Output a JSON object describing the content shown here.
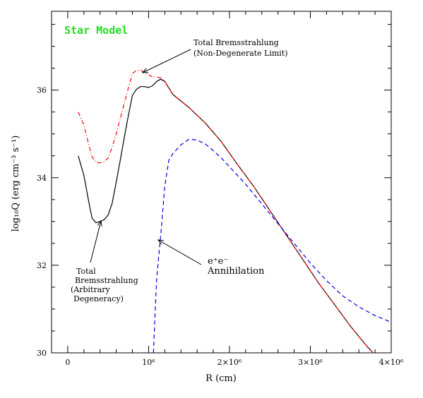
{
  "chart_data": {
    "type": "line",
    "title": "Star Model",
    "title_color": "#22dd22",
    "xlabel": "R  (cm)",
    "ylabel": "log₁₀Q  (erg cm⁻³ s⁻¹)",
    "xlim": [
      -200000.0,
      4000000.0
    ],
    "ylim": [
      30,
      37.8
    ],
    "xticks_major": [
      0,
      1000000,
      2000000,
      3000000,
      4000000
    ],
    "xtick_labels": [
      "0",
      "10⁶",
      "2×10⁶",
      "3×10⁶",
      "4×10⁶"
    ],
    "yticks_major": [
      30,
      32,
      34,
      36
    ],
    "ytick_labels": [
      "30",
      "32",
      "34",
      "36"
    ],
    "grid": false,
    "legend": "none",
    "series": [
      {
        "name": "Total Bremsstrahlung (Arbitrary Degeneracy)",
        "color": "#000000",
        "dash": "solid",
        "x": [
          130000,
          200000,
          260000,
          300000,
          350000,
          400000,
          450000,
          500000,
          550000,
          600000,
          650000,
          700000,
          750000,
          800000,
          850000,
          900000,
          950000,
          1000000,
          1050000,
          1100000,
          1150000,
          1200000,
          1300000,
          1500000,
          1700000,
          1900000,
          2100000,
          2300000,
          2500000,
          2700000,
          2900000,
          3100000,
          3300000,
          3500000,
          3700000,
          3800000
        ],
        "y": [
          34.5,
          34.05,
          33.45,
          33.08,
          32.97,
          33.0,
          33.04,
          33.15,
          33.42,
          33.9,
          34.4,
          34.93,
          35.42,
          35.88,
          36.02,
          36.08,
          36.08,
          36.06,
          36.1,
          36.2,
          36.25,
          36.2,
          35.9,
          35.6,
          35.25,
          34.82,
          34.3,
          33.8,
          33.25,
          32.7,
          32.15,
          31.6,
          31.1,
          30.6,
          30.15,
          29.95
        ]
      },
      {
        "name": "Total Bremsstrahlung (Non-Degenerate Limit)",
        "color": "#ff0000",
        "dash": "6,3,1,3",
        "x": [
          130000,
          200000,
          260000,
          300000,
          350000,
          400000,
          450000,
          500000,
          550000,
          600000,
          650000,
          700000,
          750000,
          800000,
          850000,
          900000,
          950000,
          1000000,
          1050000,
          1100000,
          1150000,
          1200000,
          1300000,
          1500000,
          1700000,
          1900000,
          2100000,
          2300000,
          2500000,
          2700000,
          2900000,
          3100000,
          3300000,
          3500000,
          3700000,
          3800000
        ],
        "y": [
          35.5,
          35.2,
          34.75,
          34.48,
          34.35,
          34.34,
          34.36,
          34.45,
          34.7,
          35.0,
          35.35,
          35.7,
          36.05,
          36.38,
          36.45,
          36.46,
          36.4,
          36.35,
          36.3,
          36.3,
          36.28,
          36.2,
          35.9,
          35.6,
          35.25,
          34.82,
          34.3,
          33.8,
          33.25,
          32.7,
          32.15,
          31.6,
          31.1,
          30.6,
          30.15,
          29.95
        ]
      },
      {
        "name": "e⁺e⁻ Annihilation",
        "color": "#0000ee",
        "dash": "6,4",
        "x": [
          1060000,
          1080000,
          1100000,
          1130000,
          1160000,
          1200000,
          1250000,
          1300000,
          1400000,
          1500000,
          1600000,
          1700000,
          1800000,
          1900000,
          2000000,
          2200000,
          2400000,
          2600000,
          2800000,
          3000000,
          3200000,
          3400000,
          3600000,
          3800000,
          4000000
        ],
        "y": [
          30.0,
          30.9,
          31.7,
          32.3,
          32.9,
          33.8,
          34.4,
          34.55,
          34.75,
          34.88,
          34.86,
          34.77,
          34.62,
          34.45,
          34.25,
          33.85,
          33.4,
          32.95,
          32.5,
          32.05,
          31.65,
          31.3,
          31.05,
          30.85,
          30.7
        ]
      }
    ],
    "annotations": [
      {
        "lines": [
          "Total Bremsstrahlung",
          "(Non-Degenerate Limit)"
        ]
      },
      {
        "lines": [
          "Total",
          "Bremsstrahlung",
          "(Arbitrary",
          "Degeneracy)"
        ]
      },
      {
        "lines": [
          "e⁺e⁻",
          "Annihilation"
        ]
      }
    ]
  }
}
